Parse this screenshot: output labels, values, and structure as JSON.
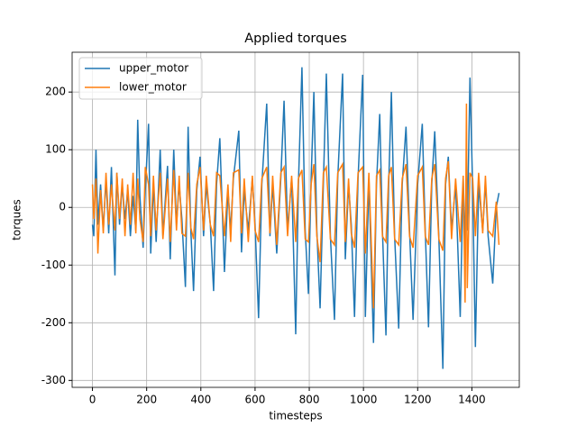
{
  "chart_data": {
    "type": "line",
    "title": "Applied torques",
    "x_label": "timesteps",
    "y_label": "torques",
    "x": [
      0,
      5,
      13,
      20,
      30,
      40,
      50,
      60,
      70,
      83,
      90,
      100,
      110,
      120,
      130,
      140,
      150,
      160,
      167,
      175,
      187,
      195,
      207,
      215,
      225,
      235,
      250,
      260,
      277,
      287,
      300,
      310,
      320,
      330,
      343,
      353,
      363,
      373,
      385,
      397,
      410,
      420,
      435,
      447,
      458,
      470,
      487,
      500,
      510,
      520,
      540,
      550,
      560,
      575,
      590,
      600,
      613,
      625,
      643,
      655,
      665,
      680,
      695,
      707,
      720,
      735,
      750,
      760,
      773,
      785,
      797,
      807,
      817,
      828,
      840,
      852,
      863,
      878,
      893,
      905,
      923,
      933,
      945,
      955,
      967,
      980,
      997,
      1007,
      1020,
      1037,
      1048,
      1060,
      1070,
      1083,
      1093,
      1103,
      1115,
      1130,
      1143,
      1157,
      1170,
      1183,
      1200,
      1217,
      1228,
      1240,
      1252,
      1263,
      1278,
      1293,
      1303,
      1313,
      1325,
      1340,
      1357,
      1368,
      1375,
      1380,
      1383,
      1393,
      1403,
      1413,
      1425,
      1440,
      1450,
      1460,
      1477,
      1490,
      1500
    ],
    "series": [
      {
        "name": "upper_motor",
        "color": "#1f77b4",
        "values": [
          -30,
          -50,
          100,
          -30,
          40,
          -40,
          50,
          -45,
          70,
          -118,
          60,
          -30,
          40,
          -20,
          30,
          -50,
          20,
          -40,
          152,
          20,
          -70,
          30,
          145,
          -80,
          40,
          -60,
          100,
          -50,
          72,
          -90,
          100,
          -30,
          40,
          -20,
          -138,
          140,
          -40,
          -145,
          30,
          88,
          -50,
          40,
          -30,
          -145,
          40,
          120,
          -112,
          30,
          -40,
          50,
          133,
          -78,
          30,
          -40,
          50,
          -30,
          -192,
          40,
          180,
          -50,
          40,
          -80,
          50,
          185,
          -40,
          50,
          -220,
          40,
          243,
          -40,
          -150,
          50,
          200,
          -40,
          -175,
          40,
          232,
          -50,
          -195,
          50,
          232,
          -90,
          40,
          -30,
          -190,
          50,
          230,
          -190,
          50,
          -235,
          40,
          162,
          -40,
          -222,
          40,
          200,
          -50,
          -210,
          40,
          140,
          -40,
          -195,
          40,
          145,
          -40,
          -208,
          40,
          132,
          -50,
          -280,
          40,
          88,
          -40,
          40,
          -190,
          50,
          -60,
          40,
          -40,
          225,
          30,
          -242,
          40,
          -40,
          45,
          -50,
          -132,
          0,
          25
        ]
      },
      {
        "name": "lower_motor",
        "color": "#ff7f0e",
        "values": [
          40,
          -20,
          50,
          -80,
          30,
          -45,
          60,
          -30,
          40,
          -40,
          60,
          -20,
          50,
          -50,
          40,
          -30,
          60,
          -45,
          50,
          -20,
          -60,
          70,
          40,
          -50,
          55,
          -40,
          60,
          -55,
          50,
          -60,
          65,
          -40,
          55,
          -45,
          -50,
          60,
          -35,
          -55,
          40,
          70,
          -40,
          55,
          -30,
          -50,
          60,
          55,
          -50,
          40,
          -60,
          60,
          65,
          -45,
          50,
          -60,
          55,
          -40,
          -60,
          50,
          70,
          -45,
          55,
          -65,
          60,
          70,
          -50,
          55,
          -60,
          50,
          65,
          -55,
          -60,
          40,
          75,
          -50,
          -95,
          60,
          70,
          -55,
          -65,
          60,
          75,
          -60,
          50,
          -45,
          -70,
          60,
          70,
          -80,
          60,
          -175,
          55,
          65,
          -50,
          -60,
          55,
          70,
          -55,
          -65,
          50,
          75,
          -50,
          -70,
          55,
          70,
          -50,
          -65,
          50,
          75,
          -55,
          -75,
          50,
          80,
          -55,
          50,
          -60,
          55,
          -165,
          180,
          -140,
          60,
          50,
          -50,
          60,
          -45,
          55,
          -40,
          -50,
          10,
          -65
        ]
      }
    ],
    "xlim": [
      -75,
      1575
    ],
    "ylim": [
      -312,
      269
    ],
    "xticks": [
      0,
      200,
      400,
      600,
      800,
      1000,
      1200,
      1400
    ],
    "yticks": [
      -300,
      -200,
      -100,
      0,
      100,
      200
    ],
    "grid": true,
    "legend": "upper-left"
  }
}
